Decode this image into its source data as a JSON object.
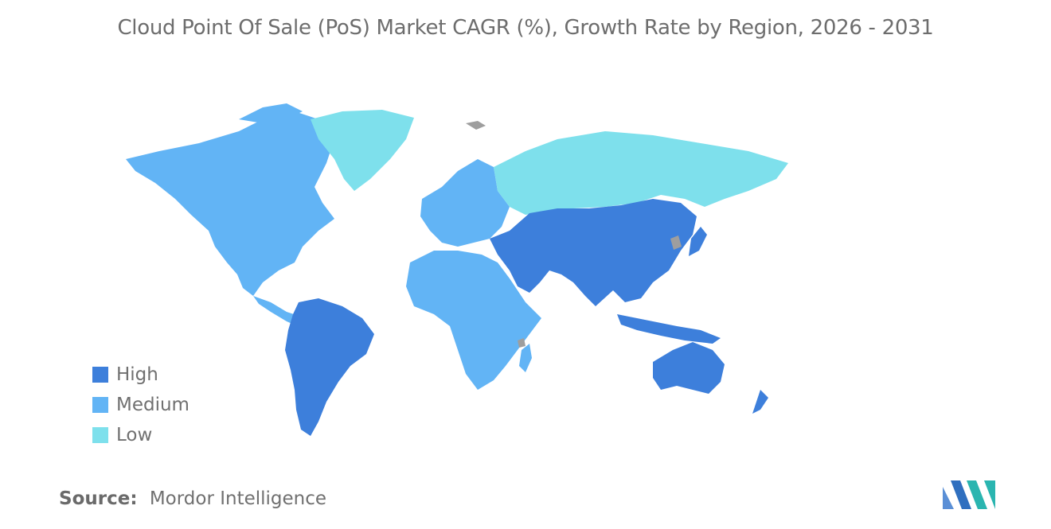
{
  "title": "Cloud Point Of Sale (PoS) Market CAGR (%), Growth Rate by Region, 2026 - 2031",
  "colors": {
    "high": "#3d7fdb",
    "medium": "#62b4f5",
    "low": "#7ee0ec",
    "no_data": "#9e9e9e",
    "text": "#707070"
  },
  "legend": [
    {
      "label": "High",
      "color": "#3d7fdb"
    },
    {
      "label": "Medium",
      "color": "#62b4f5"
    },
    {
      "label": "Low",
      "color": "#7ee0ec"
    }
  ],
  "source": {
    "label": "Source:",
    "value": "Mordor Intelligence"
  },
  "logo_icon": "mordor-intelligence-logo-icon"
}
